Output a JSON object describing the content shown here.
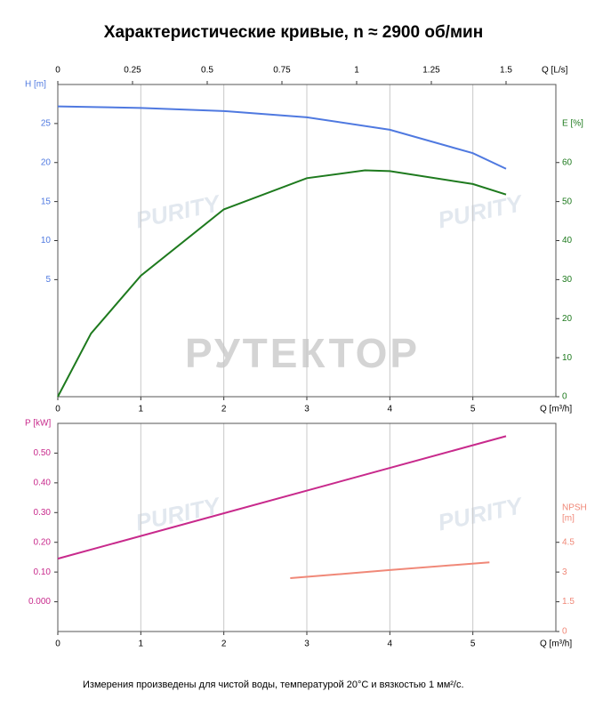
{
  "title": "Характеристические кривые, n ≈ 2900 об/мин",
  "footnote": "Измерения произведены для чистой воды, температурой 20°C и вязкостью 1 мм²/с.",
  "watermark": {
    "main": "РУТЕКТОР",
    "logo": "PURITY"
  },
  "chart_data": [
    {
      "type": "line",
      "xlabel": "Q [m³/h]",
      "x2label": "Q [L/s]",
      "xlim": [
        0,
        6
      ],
      "xticks": [
        0,
        1,
        2,
        3,
        4,
        5
      ],
      "x2lim": [
        0,
        1.6667
      ],
      "x2ticks": [
        0,
        0.25,
        0.5,
        0.75,
        1,
        1.25,
        1.5
      ],
      "ylabel": "H [m]",
      "ylim": [
        -10,
        30
      ],
      "yticks": [
        5,
        10,
        15,
        20,
        25
      ],
      "y2label": [
        "E [%]"
      ],
      "y2lim": [
        0,
        80
      ],
      "y2ticks": [
        0,
        10,
        20,
        30,
        40,
        50,
        60
      ],
      "grid": true,
      "series": [
        {
          "color": "#4f79e0",
          "x": [
            0,
            1,
            2,
            3,
            4,
            5,
            5.4
          ],
          "values": [
            27.2,
            27.0,
            26.6,
            25.8,
            24.2,
            21.2,
            19.2
          ]
        },
        {
          "color": "#1e7a1e",
          "axis": "y2",
          "x": [
            0,
            0.4,
            1,
            2,
            3,
            3.7,
            4,
            5,
            5.4
          ],
          "values": [
            0,
            16.2,
            31,
            48,
            56,
            58,
            57.8,
            54.5,
            51.8
          ]
        }
      ]
    },
    {
      "type": "line",
      "xlabel": "Q [m³/h]",
      "xlim": [
        0,
        6
      ],
      "xticks": [
        0,
        1,
        2,
        3,
        4,
        5
      ],
      "ylabel": "P [kW]",
      "ylim": [
        -0.1,
        0.6
      ],
      "yticks": [
        {
          "value": 0,
          "label": "0.000"
        },
        {
          "value": 0.1,
          "label": "0.10"
        },
        {
          "value": 0.2,
          "label": "0.20"
        },
        {
          "value": 0.3,
          "label": "0.30"
        },
        {
          "value": 0.4,
          "label": "0.40"
        },
        {
          "value": 0.5,
          "label": "0.50"
        }
      ],
      "y2label": [
        "NPSH",
        "[m]"
      ],
      "y2lim": [
        0,
        10.5
      ],
      "y2ticks": [
        0,
        1.5,
        3,
        4.5
      ],
      "grid": true,
      "series": [
        {
          "color": "#c82a8c",
          "x": [
            0,
            5.4
          ],
          "values": [
            0.145,
            0.557
          ]
        },
        {
          "color": "#f08878",
          "axis": "y2",
          "x": [
            2.8,
            4,
            5.2
          ],
          "values": [
            2.69,
            3.1,
            3.49
          ]
        }
      ]
    }
  ]
}
